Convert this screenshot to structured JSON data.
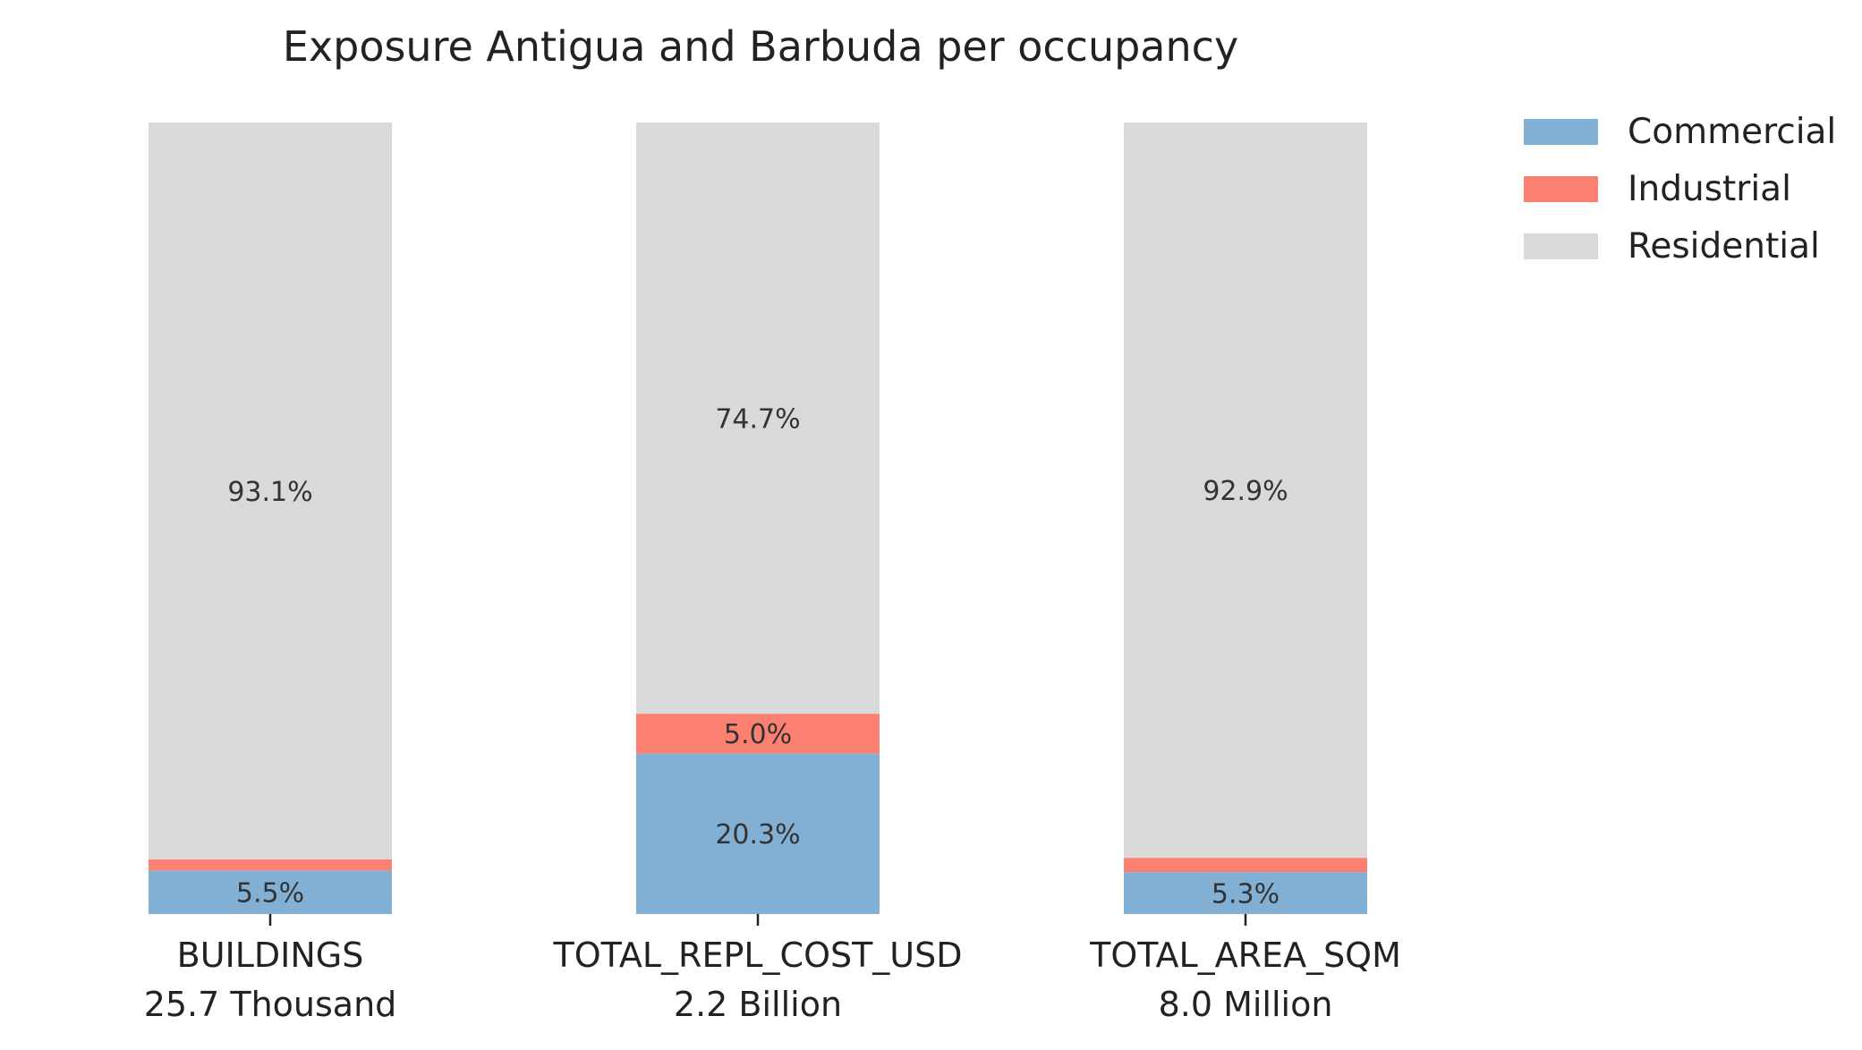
{
  "chart_data": {
    "type": "bar",
    "stacked": true,
    "normalized_percent": true,
    "title": "Exposure Antigua and Barbuda per occupancy",
    "categories": [
      "BUILDINGS",
      "TOTAL_REPL_COST_USD",
      "TOTAL_AREA_SQM"
    ],
    "category_totals": [
      "25.7 Thousand",
      "2.2 Billion",
      "8.0 Million"
    ],
    "series": [
      {
        "name": "Commercial",
        "color": "#82b0d4",
        "values": [
          5.5,
          20.3,
          5.3
        ],
        "labels": [
          "5.5%",
          "20.3%",
          "5.3%"
        ]
      },
      {
        "name": "Industrial",
        "color": "#fb8072",
        "values": [
          1.4,
          5.0,
          1.8
        ],
        "labels": [
          "",
          "5.0%",
          ""
        ]
      },
      {
        "name": "Residential",
        "color": "#d9d9d9",
        "values": [
          93.1,
          74.7,
          92.9
        ],
        "labels": [
          "93.1%",
          "74.7%",
          "92.9%"
        ]
      }
    ],
    "ylim": [
      0,
      100
    ],
    "grid": false,
    "legend_position": "top-right"
  }
}
